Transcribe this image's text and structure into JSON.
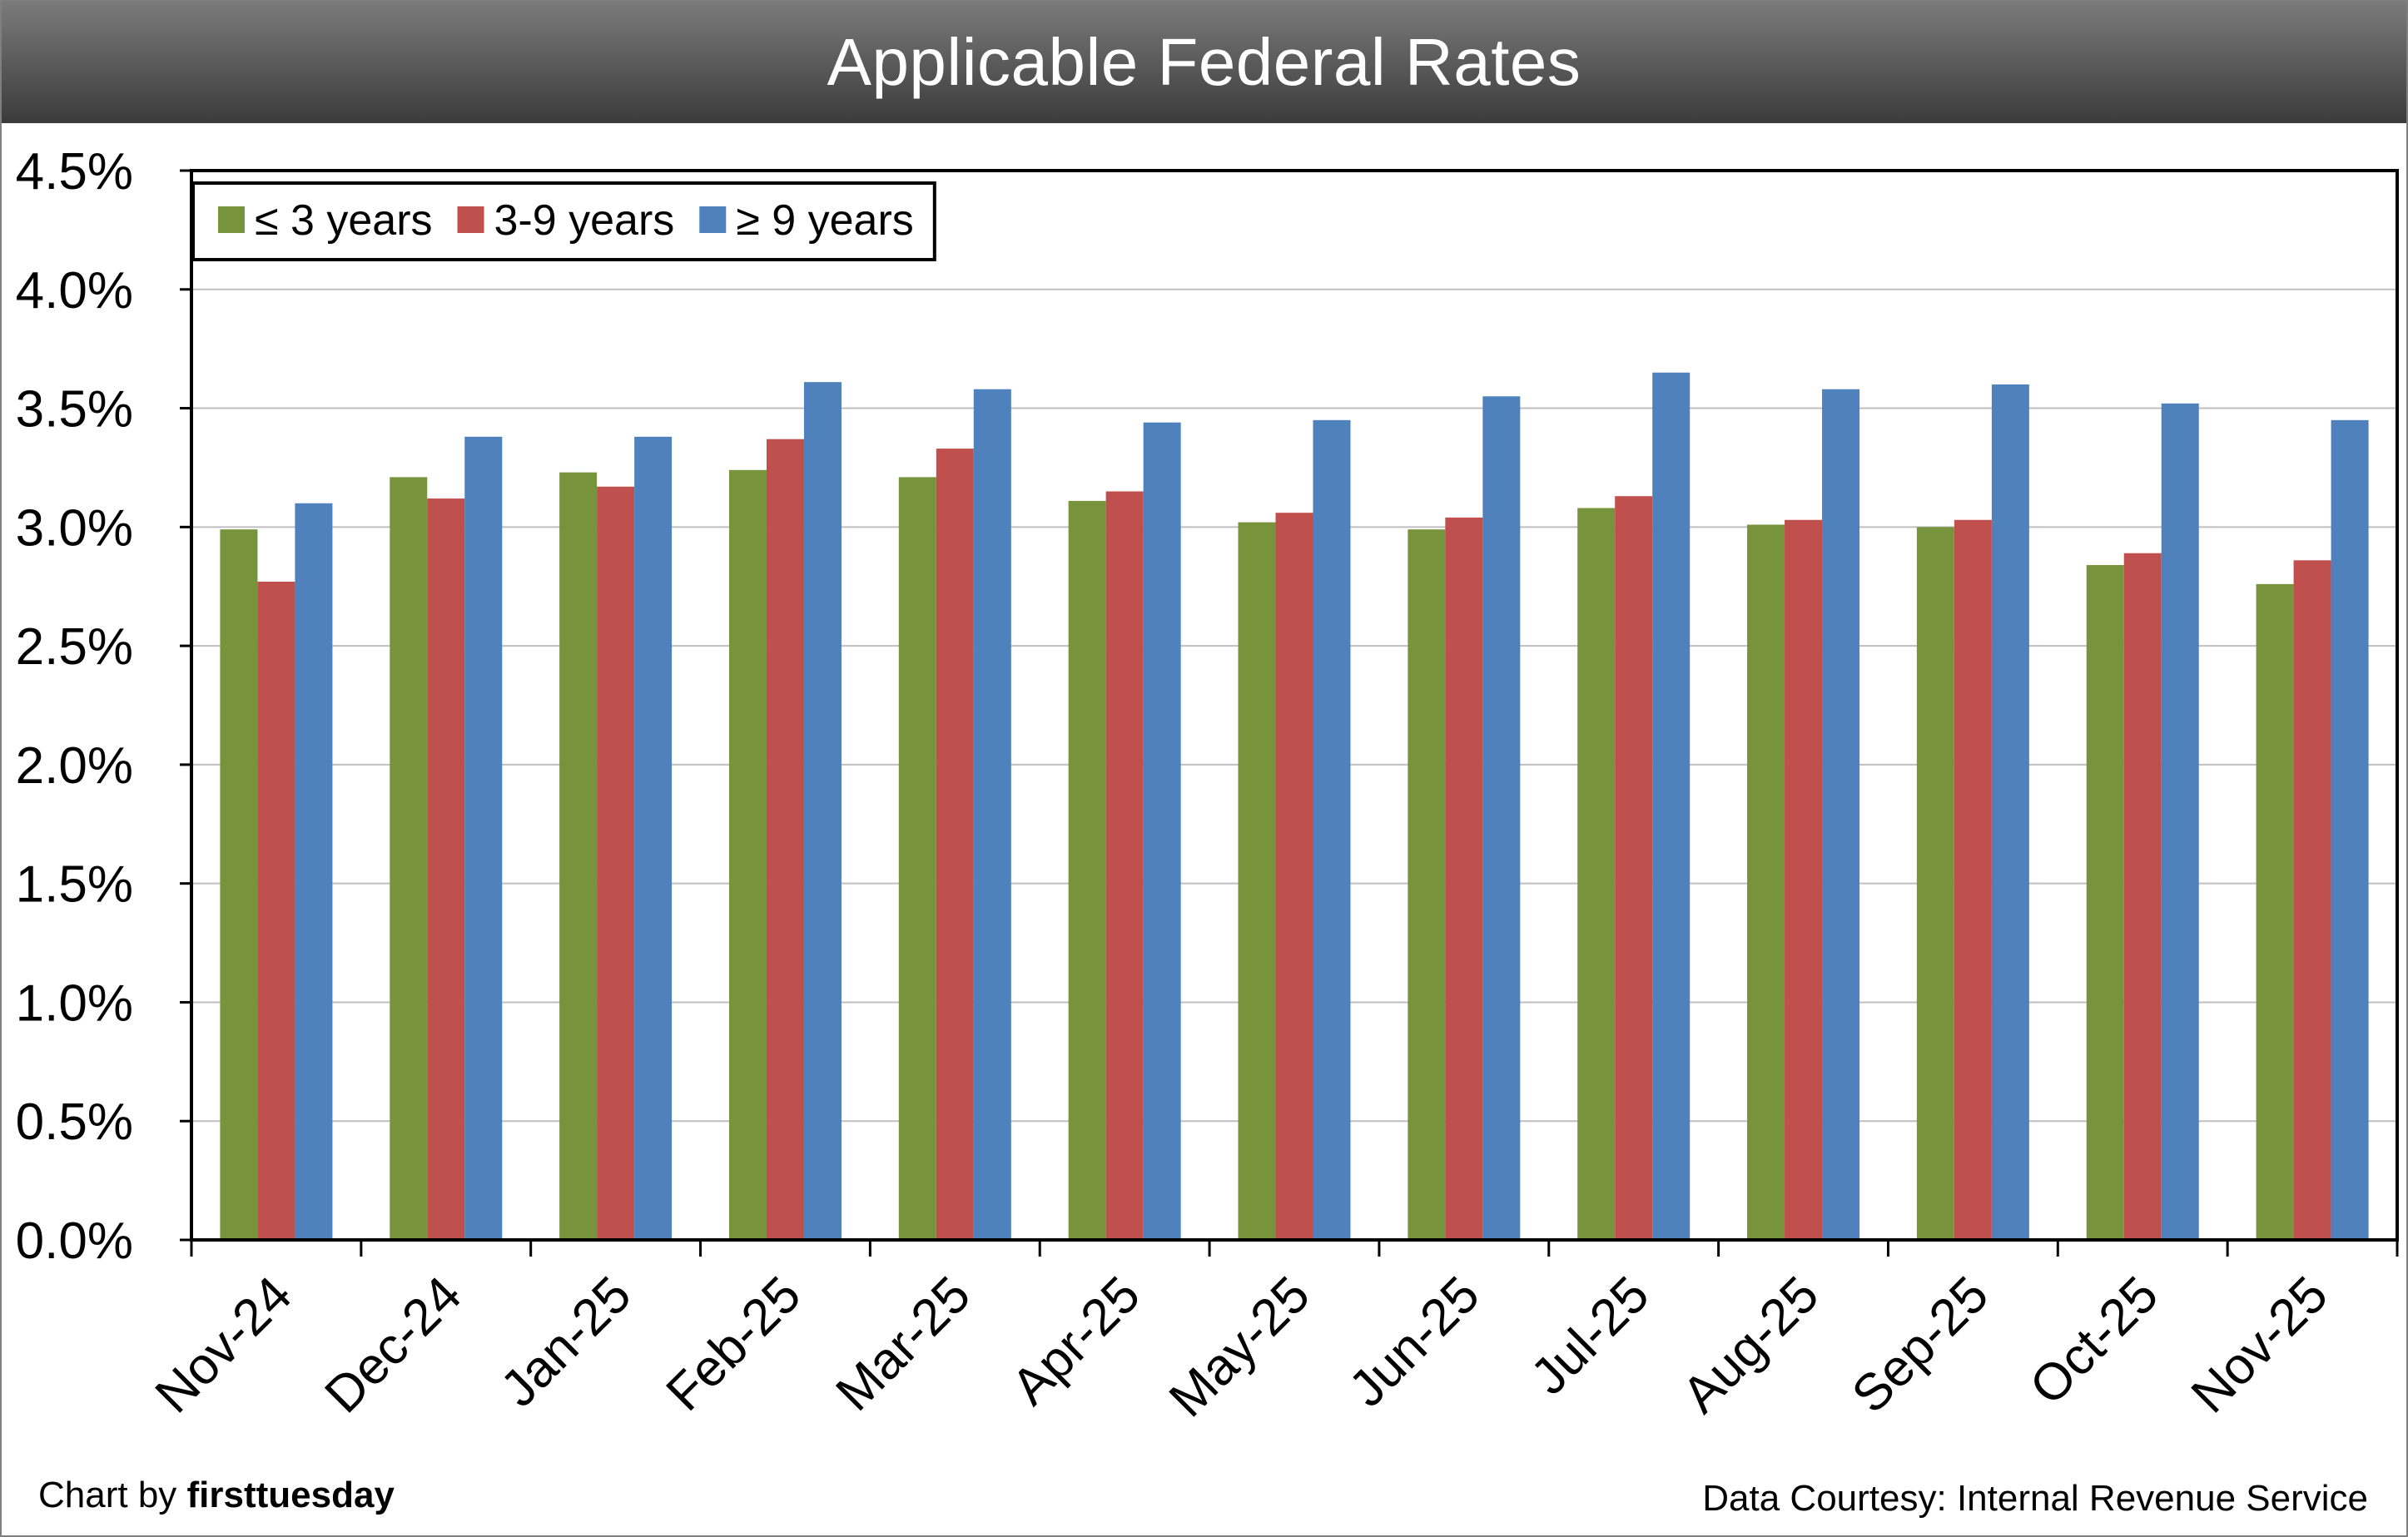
{
  "chart_data": {
    "type": "bar",
    "title": "Applicable Federal Rates",
    "categories": [
      "Nov-24",
      "Dec-24",
      "Jan-25",
      "Feb-25",
      "Mar-25",
      "Apr-25",
      "May-25",
      "Jun-25",
      "Jul-25",
      "Aug-25",
      "Sep-25",
      "Oct-25",
      "Nov-25"
    ],
    "series": [
      {
        "name": "≤ 3 years",
        "color": "#77933c",
        "values": [
          2.99,
          3.21,
          3.23,
          3.24,
          3.21,
          3.11,
          3.02,
          2.99,
          3.08,
          3.01,
          3.0,
          2.84,
          2.76
        ]
      },
      {
        "name": "3-9 years",
        "color": "#c0504d",
        "values": [
          2.77,
          3.12,
          3.17,
          3.37,
          3.33,
          3.15,
          3.06,
          3.04,
          3.13,
          3.03,
          3.03,
          2.89,
          2.86
        ]
      },
      {
        "name": "≥  9 years",
        "color": "#4f81bd",
        "values": [
          3.1,
          3.38,
          3.38,
          3.61,
          3.58,
          3.44,
          3.45,
          3.55,
          3.65,
          3.58,
          3.6,
          3.52,
          3.45
        ]
      }
    ],
    "ylim": [
      0,
      4.5
    ],
    "yticks": [
      "0.0%",
      "0.5%",
      "1.0%",
      "1.5%",
      "2.0%",
      "2.5%",
      "3.0%",
      "3.5%",
      "4.0%",
      "4.5%"
    ],
    "xlabel": "",
    "ylabel": "",
    "grid": true,
    "legend_position": "top-left"
  },
  "footer": {
    "credit_prefix": "Chart by ",
    "credit_brand": "firsttuesday",
    "source": "Data Courtesy: Internal Revenue Service"
  }
}
